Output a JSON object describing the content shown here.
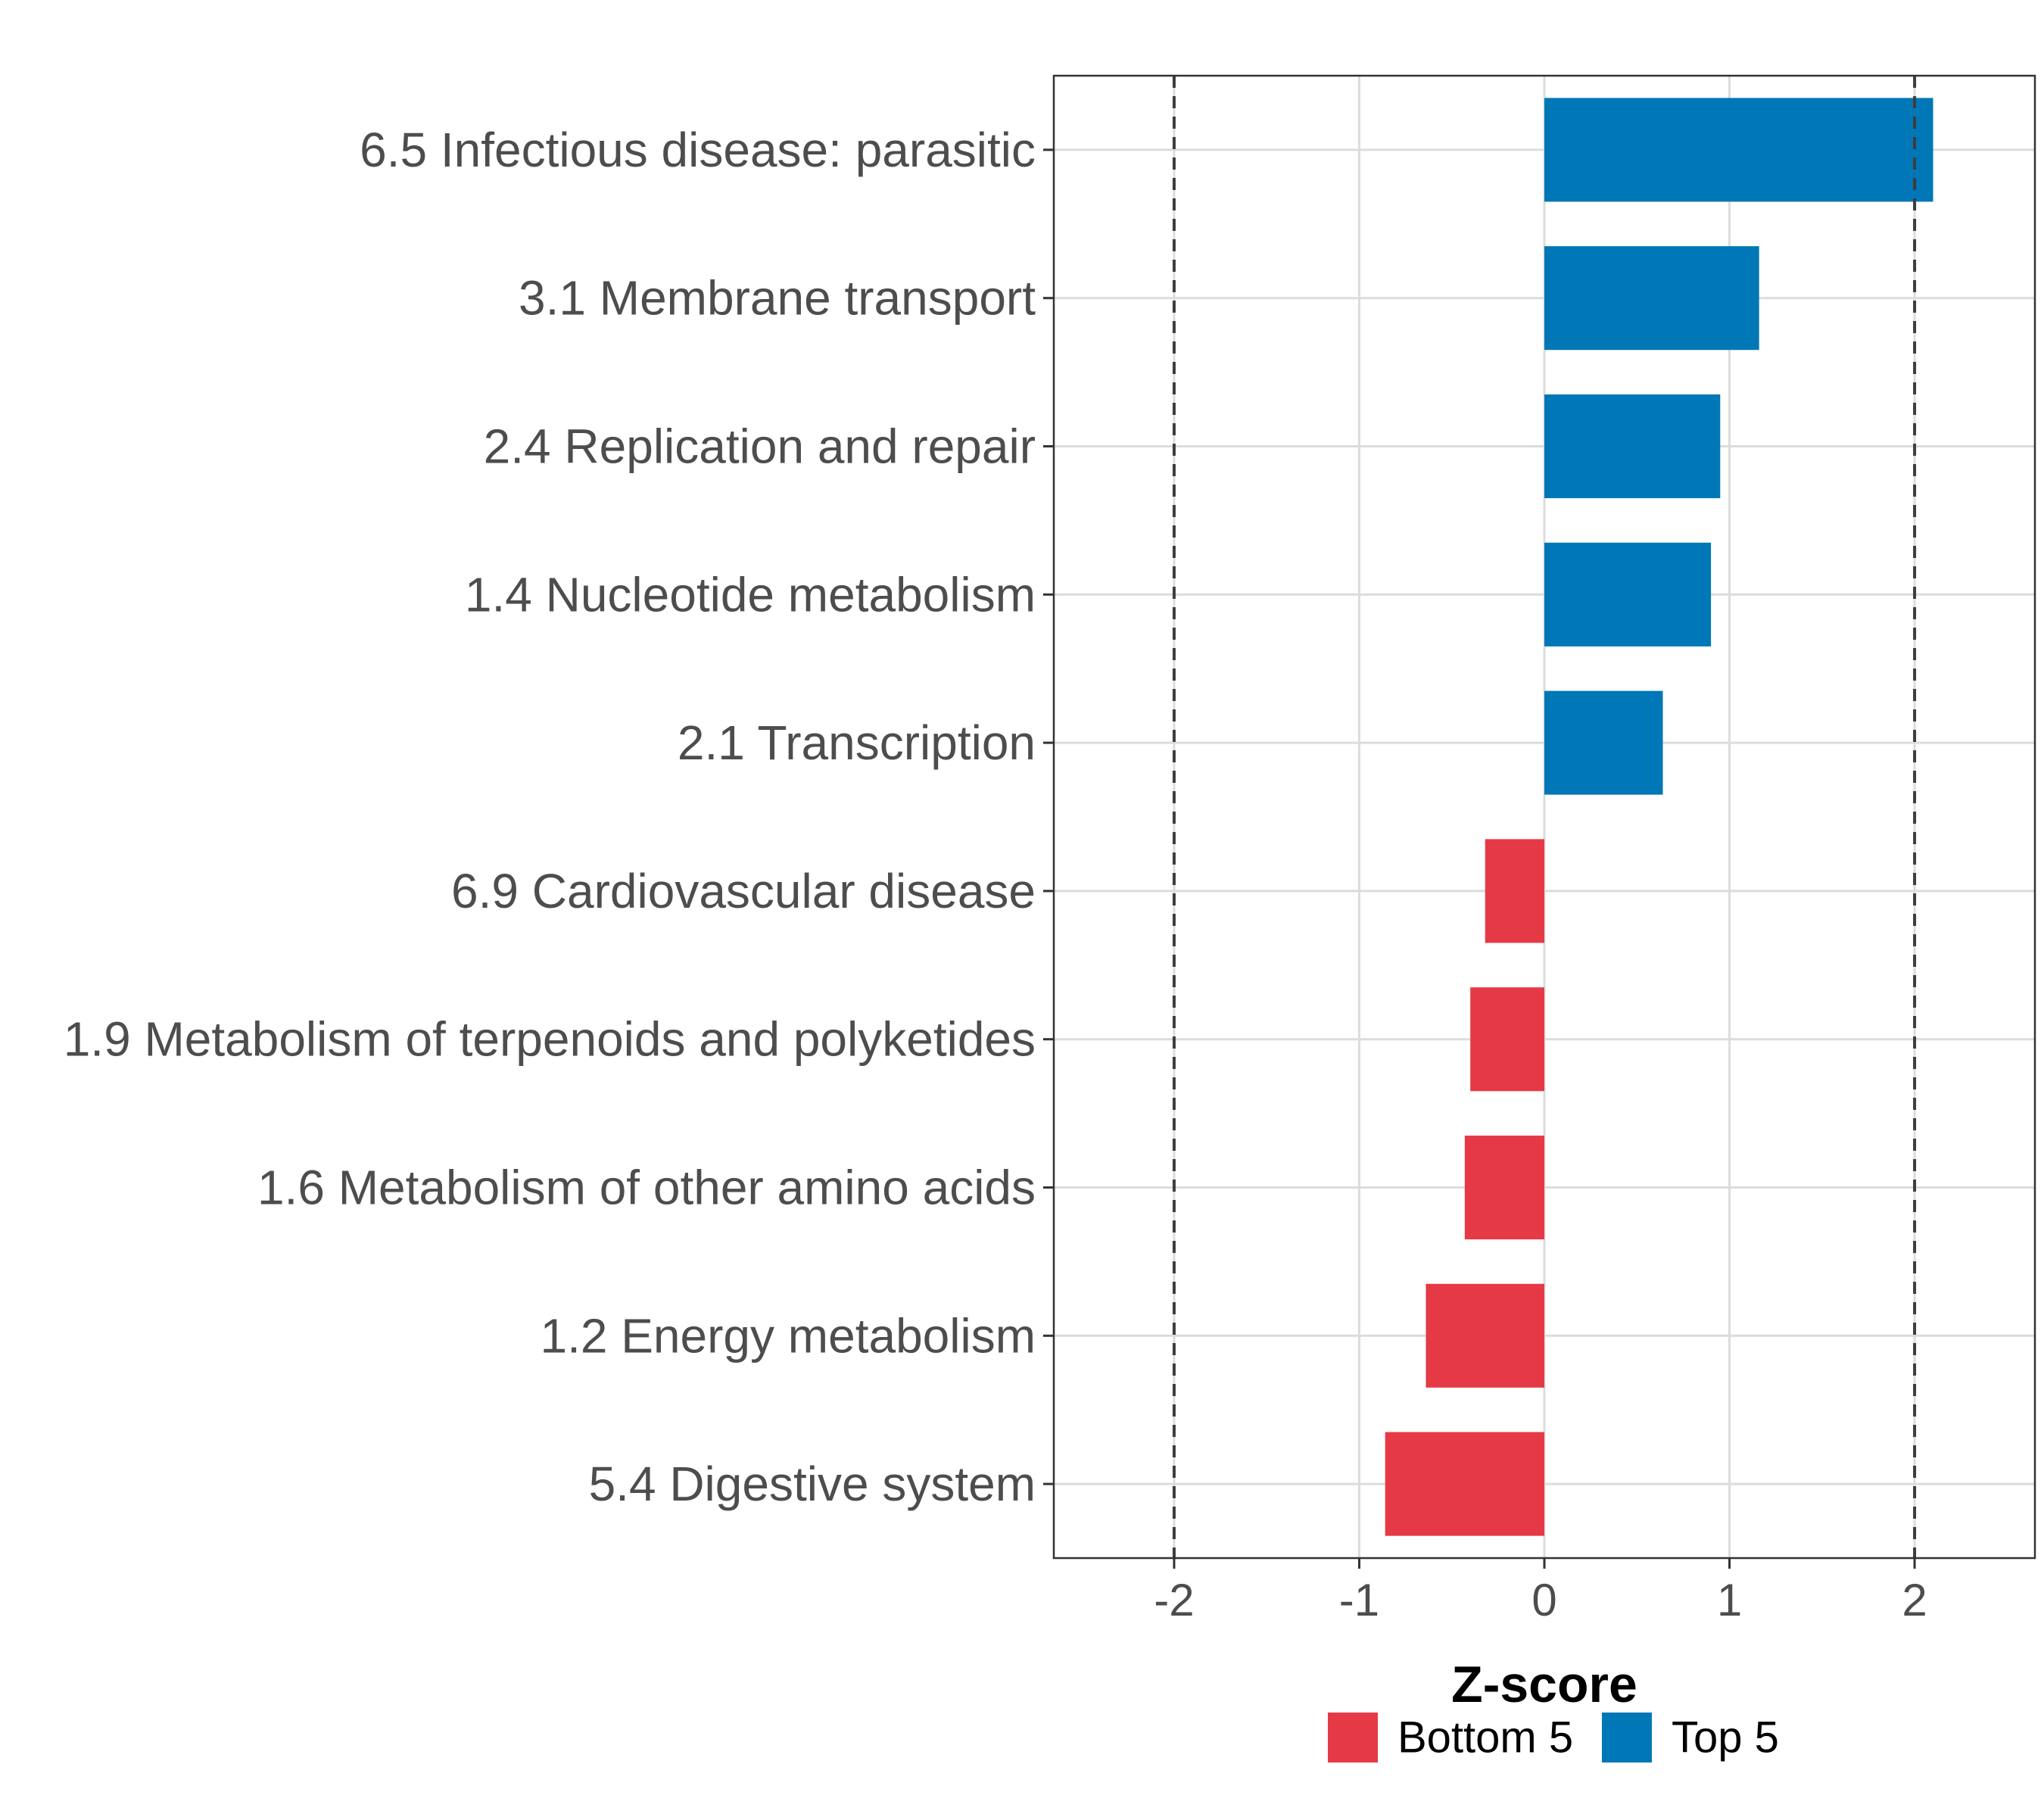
{
  "chart_data": {
    "type": "bar",
    "orientation": "horizontal",
    "title": "",
    "xlabel": "Z-score",
    "ylabel": "",
    "xlim": [
      -2.65,
      2.65
    ],
    "x_ticks": [
      -2,
      -1,
      0,
      1,
      2
    ],
    "x_tick_labels": [
      "-2",
      "-1",
      "0",
      "1",
      "2"
    ],
    "reference_lines": [
      -2,
      2
    ],
    "grid": true,
    "categories": [
      "6.5 Infectious disease: parasitic",
      "3.1 Membrane transport",
      "2.4 Replication and repair",
      "1.4 Nucleotide metabolism",
      "2.1 Transcription",
      "6.9 Cardiovascular disease",
      "1.9 Metabolism of terpenoids and polyketides",
      "1.6 Metabolism of other amino acids",
      "1.2 Energy metabolism",
      "5.4 Digestive system"
    ],
    "values": [
      2.1,
      1.16,
      0.95,
      0.9,
      0.64,
      -0.32,
      -0.4,
      -0.43,
      -0.64,
      -0.86
    ],
    "groups": [
      "Top 5",
      "Top 5",
      "Top 5",
      "Top 5",
      "Top 5",
      "Bottom 5",
      "Bottom 5",
      "Bottom 5",
      "Bottom 5",
      "Bottom 5"
    ],
    "legend": {
      "position": "bottom",
      "entries": [
        {
          "name": "Bottom 5",
          "color": "#E63946"
        },
        {
          "name": "Top 5",
          "color": "#0077B6"
        }
      ]
    }
  }
}
